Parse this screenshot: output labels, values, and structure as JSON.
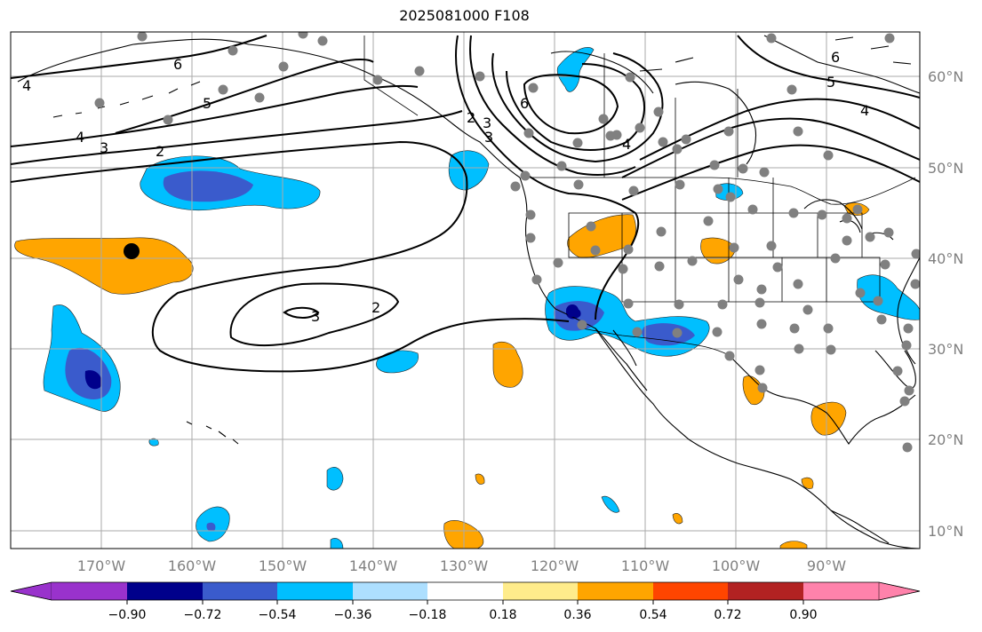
{
  "title": "2025081000 F108",
  "lon_labels": [
    "170°W",
    "160°W",
    "150°W",
    "140°W",
    "130°W",
    "120°W",
    "110°W",
    "100°W",
    "90°W"
  ],
  "lat_labels": [
    "60°N",
    "50°N",
    "40°N",
    "30°N",
    "20°N",
    "10°N"
  ],
  "contour_labels": [
    "6",
    "5",
    "4",
    "3",
    "2",
    "3",
    "2",
    "4",
    "3",
    "2",
    "3",
    "6",
    "4",
    "6",
    "5",
    "4"
  ],
  "colorbar": {
    "colors": [
      "#9932CC",
      "#00008B",
      "#3A5BCC",
      "#00BFFF",
      "#ADDFFF",
      "#FFFFFF",
      "#FFEC8B",
      "#FFA500",
      "#FF4500",
      "#B22222",
      "#FF82AB"
    ],
    "tick_labels": [
      "−0.90",
      "−0.72",
      "−0.54",
      "−0.36",
      "−0.18",
      "0.18",
      "0.36",
      "0.54",
      "0.72",
      "0.90"
    ]
  },
  "colors": {
    "neg_strong": "#00008B",
    "neg_mod": "#3A5BCC",
    "neg_light": "#00BFFF",
    "pos_mod": "#FFA500",
    "pos_light": "#FFEC8B",
    "station": "#808080",
    "grid": "#aaaaaa"
  }
}
